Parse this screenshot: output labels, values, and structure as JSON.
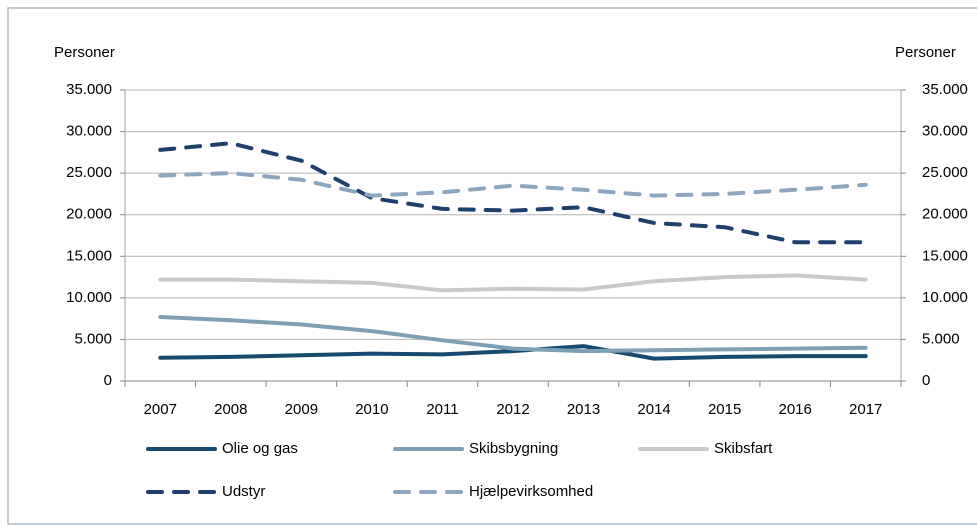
{
  "chart_data": {
    "type": "line",
    "ylabel": "Personer",
    "y2label": "Personer",
    "categories": [
      "2007",
      "2008",
      "2009",
      "2010",
      "2011",
      "2012",
      "2013",
      "2014",
      "2015",
      "2016",
      "2017"
    ],
    "series": [
      {
        "name": "Olie og gas",
        "color": "#174a6e",
        "line_style": "solid",
        "values": [
          2800,
          2900,
          3100,
          3300,
          3200,
          3600,
          4200,
          2700,
          2900,
          3000,
          3000
        ]
      },
      {
        "name": "Skibsbygning",
        "color": "#7f9fb5",
        "line_style": "solid",
        "values": [
          7700,
          7300,
          6800,
          6000,
          4900,
          3900,
          3600,
          3700,
          3800,
          3900,
          4000
        ]
      },
      {
        "name": "Skibsfart",
        "color": "#c9c9c9",
        "line_style": "solid",
        "values": [
          12200,
          12200,
          12000,
          11800,
          10900,
          11100,
          11000,
          12000,
          12500,
          12700,
          12200
        ]
      },
      {
        "name": "Udstyr",
        "color": "#1f3f6c",
        "line_style": "dashed",
        "values": [
          27800,
          28600,
          26500,
          22000,
          20700,
          20500,
          20900,
          19000,
          18500,
          16700,
          16700
        ]
      },
      {
        "name": "Hjælpevirksomhed",
        "color": "#8ba6be",
        "line_style": "dashed",
        "values": [
          24700,
          25000,
          24200,
          22300,
          22700,
          23500,
          23000,
          22300,
          22500,
          23000,
          23600
        ]
      }
    ],
    "ylim": [
      0,
      35000
    ],
    "yticks": [
      0,
      {
        "value": 5000,
        "label": "5.000"
      },
      {
        "value": 10000,
        "label": "10.000"
      },
      {
        "value": 15000,
        "label": "15.000"
      },
      {
        "value": 20000,
        "label": "20.000"
      },
      {
        "value": 25000,
        "label": "25.000"
      },
      {
        "value": 30000,
        "label": "30.000"
      },
      {
        "value": 35000,
        "label": "35.000"
      }
    ],
    "y2lim": [
      0,
      35000
    ],
    "y2ticks": [
      0,
      {
        "value": 5000,
        "label": "5.000"
      },
      {
        "value": 10000,
        "label": "10.000"
      },
      {
        "value": 15000,
        "label": "15.000"
      },
      {
        "value": 20000,
        "label": "20.000"
      },
      {
        "value": 25000,
        "label": "25.000"
      },
      {
        "value": 30000,
        "label": "30.000"
      },
      {
        "value": 35000,
        "label": "35.000"
      }
    ],
    "grid": true,
    "legend": "bottom"
  }
}
